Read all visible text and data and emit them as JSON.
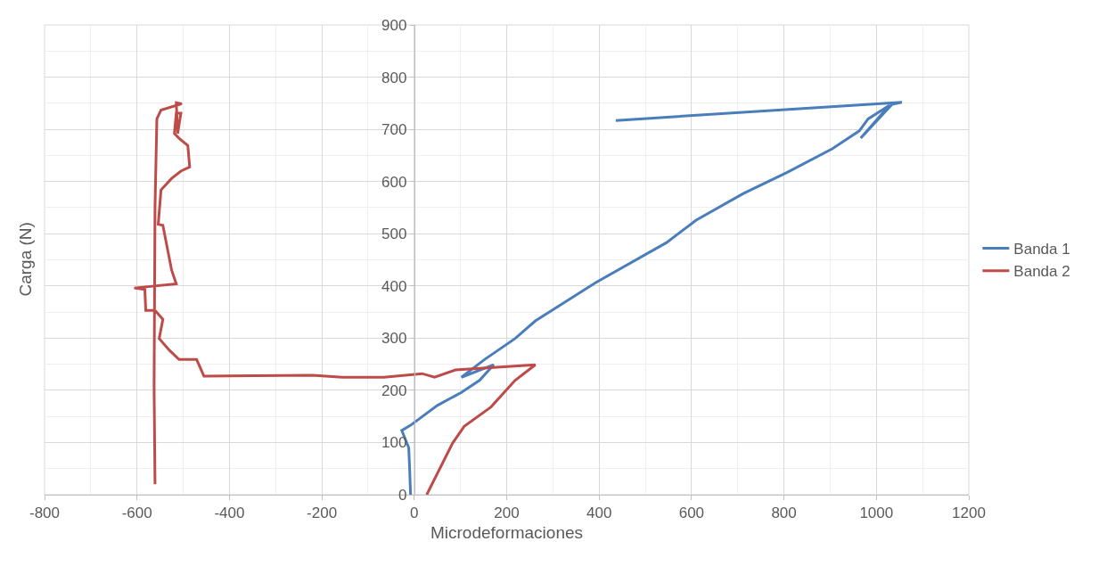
{
  "chart_data": {
    "type": "line",
    "xlabel": "Microdeformaciones",
    "ylabel": "Carga (N)",
    "xlim": [
      -800,
      1200
    ],
    "xticks": [
      -800,
      -600,
      -400,
      -200,
      0,
      200,
      400,
      600,
      800,
      1000,
      1200
    ],
    "ylim": [
      0,
      900
    ],
    "yticks": [
      0,
      100,
      200,
      300,
      400,
      500,
      600,
      700,
      800,
      900
    ],
    "grid": true,
    "legend": "right",
    "marker": "none",
    "line_style": "solid",
    "series": [
      {
        "name": "Banda 1",
        "color": "#4a7ebb",
        "x": [
          -8,
          -10,
          -12,
          -27,
          -8,
          50,
          102,
          141,
          172,
          102,
          152,
          218,
          262,
          392,
          546,
          610,
          712,
          808,
          905,
          963,
          982,
          1028,
          966,
          1034,
          1055,
          436
        ],
        "values": [
          0,
          50,
          90,
          123,
          133,
          171,
          196,
          219,
          249,
          225,
          259,
          299,
          333,
          406,
          483,
          526,
          577,
          618,
          663,
          697,
          720,
          746,
          683,
          748,
          752,
          717
        ]
      },
      {
        "name": "Banda 2",
        "color": "#be4b48",
        "x": [
          27,
          83,
          108,
          166,
          218,
          262,
          89,
          44,
          17,
          -66,
          -156,
          -220,
          -455,
          -471,
          -509,
          -529,
          -552,
          -544,
          -561,
          -581,
          -583,
          -606,
          -515,
          -525,
          -544,
          -554,
          -548,
          -525,
          -505,
          -486,
          -490,
          -509,
          -519,
          -515,
          -505,
          -512,
          -515,
          -503,
          -548,
          -557,
          -561,
          -563,
          -561
        ],
        "values": [
          0,
          99,
          131,
          168,
          219,
          249,
          239,
          225,
          232,
          225,
          225,
          229,
          227,
          259,
          259,
          276,
          299,
          336,
          353,
          353,
          393,
          396,
          404,
          430,
          516,
          518,
          584,
          606,
          620,
          628,
          669,
          683,
          692,
          731,
          731,
          692,
          751,
          749,
          737,
          720,
          550,
          208,
          20
        ]
      }
    ]
  }
}
